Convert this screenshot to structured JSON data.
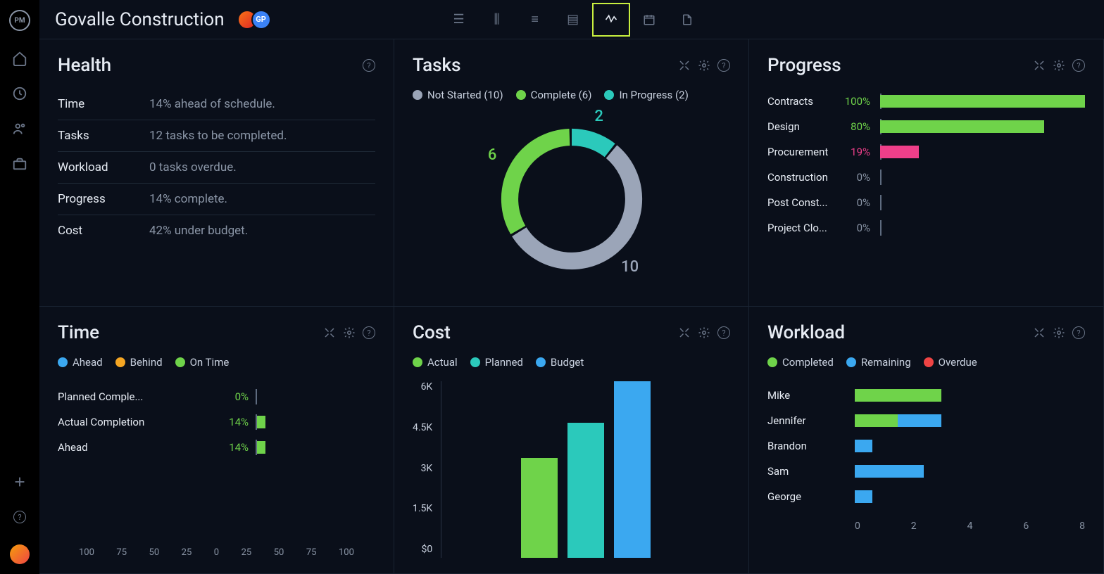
{
  "project_title": "Govalle Construction",
  "avatar_badge": "GP",
  "colors": {
    "green": "#6fd34a",
    "teal": "#2bc9bb",
    "gray": "#9ba5b8",
    "pink": "#ef3f8a",
    "blue": "#3ba8f0",
    "orange": "#f5a623",
    "red": "#ef4444",
    "bg": "#0a0f1a",
    "card_border": "#1a2332",
    "text_muted": "#8a95a6"
  },
  "health": {
    "title": "Health",
    "rows": [
      {
        "label": "Time",
        "value": "14% ahead of schedule."
      },
      {
        "label": "Tasks",
        "value": "12 tasks to be completed."
      },
      {
        "label": "Workload",
        "value": "0 tasks overdue."
      },
      {
        "label": "Progress",
        "value": "14% complete."
      },
      {
        "label": "Cost",
        "value": "42% under budget."
      }
    ]
  },
  "tasks": {
    "title": "Tasks",
    "legend": [
      {
        "label": "Not Started (10)",
        "color": "#9ba5b8",
        "key": "not_started"
      },
      {
        "label": "Complete (6)",
        "color": "#6fd34a",
        "key": "complete"
      },
      {
        "label": "In Progress (2)",
        "color": "#2bc9bb",
        "key": "in_progress"
      }
    ],
    "donut": {
      "total": 18,
      "segments": [
        {
          "value": 2,
          "color": "#2bc9bb",
          "label": "2",
          "label_color": "#2bc9bb"
        },
        {
          "value": 10,
          "color": "#9ba5b8",
          "label": "10",
          "label_color": "#9ba5b8"
        },
        {
          "value": 6,
          "color": "#6fd34a",
          "label": "6",
          "label_color": "#6fd34a"
        }
      ],
      "radius": 80,
      "thickness": 22
    }
  },
  "progress": {
    "title": "Progress",
    "rows": [
      {
        "label": "Contracts",
        "pct": 100,
        "pct_text": "100%",
        "color": "#6fd34a",
        "pct_color": "#6fd34a"
      },
      {
        "label": "Design",
        "pct": 80,
        "pct_text": "80%",
        "color": "#6fd34a",
        "pct_color": "#6fd34a"
      },
      {
        "label": "Procurement",
        "pct": 19,
        "pct_text": "19%",
        "color": "#ef3f8a",
        "pct_color": "#ef3f8a"
      },
      {
        "label": "Construction",
        "pct": 0,
        "pct_text": "0%",
        "color": "#6fd34a",
        "pct_color": "#8a95a6"
      },
      {
        "label": "Post Const...",
        "pct": 0,
        "pct_text": "0%",
        "color": "#6fd34a",
        "pct_color": "#8a95a6"
      },
      {
        "label": "Project Clo...",
        "pct": 0,
        "pct_text": "0%",
        "color": "#6fd34a",
        "pct_color": "#8a95a6"
      }
    ]
  },
  "time": {
    "title": "Time",
    "legend": [
      {
        "label": "Ahead",
        "color": "#3ba8f0"
      },
      {
        "label": "Behind",
        "color": "#f5a623"
      },
      {
        "label": "On Time",
        "color": "#6fd34a"
      }
    ],
    "rows": [
      {
        "label": "Planned Comple...",
        "pct_text": "0%",
        "pct": 0
      },
      {
        "label": "Actual Completion",
        "pct_text": "14%",
        "pct": 14
      },
      {
        "label": "Ahead",
        "pct_text": "14%",
        "pct": 14
      }
    ],
    "axis": [
      "100",
      "75",
      "50",
      "25",
      "0",
      "25",
      "50",
      "75",
      "100"
    ]
  },
  "cost": {
    "title": "Cost",
    "legend": [
      {
        "label": "Actual",
        "color": "#6fd34a"
      },
      {
        "label": "Planned",
        "color": "#2bc9bb"
      },
      {
        "label": "Budget",
        "color": "#3ba8f0"
      }
    ],
    "ylabels": [
      "6K",
      "4.5K",
      "3K",
      "1.5K",
      "$0"
    ],
    "ymax": 6,
    "bars": [
      {
        "value": 3.4,
        "color": "#6fd34a"
      },
      {
        "value": 4.6,
        "color": "#2bc9bb"
      },
      {
        "value": 6.0,
        "color": "#3ba8f0"
      }
    ]
  },
  "workload": {
    "title": "Workload",
    "legend": [
      {
        "label": "Completed",
        "color": "#6fd34a"
      },
      {
        "label": "Remaining",
        "color": "#3ba8f0"
      },
      {
        "label": "Overdue",
        "color": "#ef4444"
      }
    ],
    "xmax": 8,
    "rows": [
      {
        "name": "Mike",
        "segs": [
          {
            "v": 3.0,
            "c": "#6fd34a"
          }
        ]
      },
      {
        "name": "Jennifer",
        "segs": [
          {
            "v": 1.5,
            "c": "#6fd34a"
          },
          {
            "v": 1.5,
            "c": "#3ba8f0"
          }
        ]
      },
      {
        "name": "Brandon",
        "segs": [
          {
            "v": 0.6,
            "c": "#3ba8f0"
          }
        ]
      },
      {
        "name": "Sam",
        "segs": [
          {
            "v": 2.4,
            "c": "#3ba8f0"
          }
        ]
      },
      {
        "name": "George",
        "segs": [
          {
            "v": 0.6,
            "c": "#3ba8f0"
          }
        ]
      }
    ],
    "axis": [
      "0",
      "2",
      "4",
      "6",
      "8"
    ]
  }
}
